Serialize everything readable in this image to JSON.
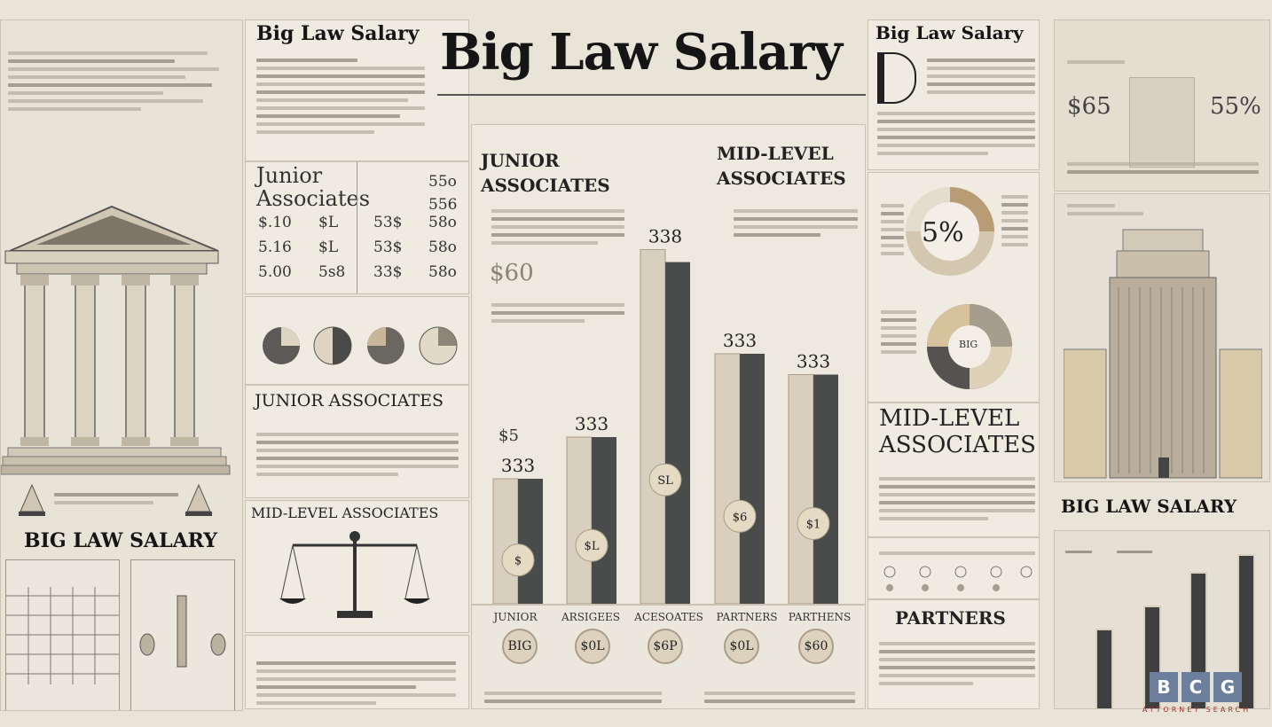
{
  "title": "Big Law Salary",
  "left": {
    "heading": "BIG LAW SALARY"
  },
  "col2": {
    "heading": "Big Law Salary",
    "junior_title": "Junior Associates",
    "grid": [
      [
        "$.10",
        "$L",
        "53$",
        "58o"
      ],
      [
        "5.16",
        "$L",
        "53$",
        "58o"
      ],
      [
        "5.00",
        "5s8",
        "33$",
        "58o"
      ]
    ],
    "grid_right": [
      "55o",
      "556"
    ],
    "junior_header": "JUNIOR ASSOCIATES",
    "mid_header": "MID-LEVEL ASSOCIATES"
  },
  "center": {
    "left_title": "JUNIOR ASSOCIATES",
    "right_title": "MID-LEVEL ASSOCIATES",
    "big_value": "$60",
    "bar_labels": [
      "333",
      "333",
      "338",
      "333",
      "333"
    ],
    "small_label": "$5",
    "coin_labels": [
      "$",
      "$L",
      "SL",
      "$6",
      "$1"
    ],
    "x_labels": [
      "JUNIOR",
      "ARSIGEES",
      "ACESOATES",
      "PARTNERS",
      "PARTHENS"
    ],
    "bottom_coins": [
      "BIG",
      "$0L",
      "$6P",
      "$0L",
      "$60"
    ]
  },
  "col4": {
    "heading": "Big Law Salary",
    "pie_label": "5%",
    "ring_label": "BIG",
    "mid_title": "MID-LEVEL ASSOCIATES",
    "partners_title": "PARTNERS"
  },
  "right": {
    "stat_left": "$65",
    "stat_right": "55%",
    "heading": "BIG LAW SALARY",
    "logo": [
      "B",
      "C",
      "G"
    ],
    "logo_sub": "ATTORNEY SEARCH"
  },
  "chart_data": {
    "type": "bar",
    "categories": [
      "JUNIOR",
      "ARSIGEES",
      "ACESOATES",
      "PARTNERS",
      "PARTHENS"
    ],
    "series": [
      {
        "values": [
          30,
          40,
          85,
          60,
          55
        ]
      },
      {
        "values": [
          30,
          40,
          82,
          60,
          55
        ]
      }
    ],
    "ylim": [
      0,
      100
    ],
    "colors": [
      "#d8cfbe",
      "#4a4b4b"
    ]
  }
}
